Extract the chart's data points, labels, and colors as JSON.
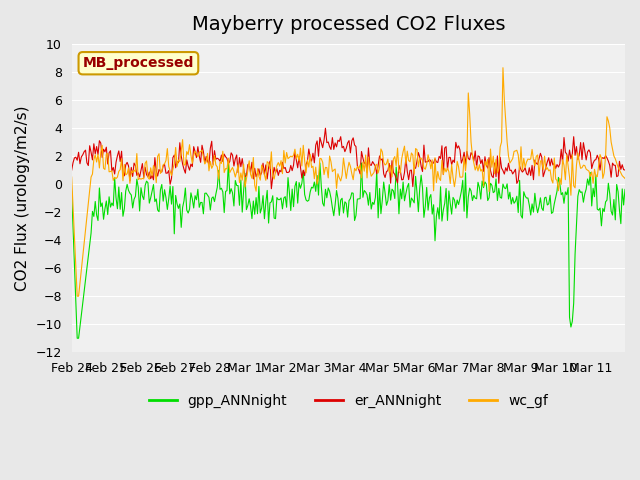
{
  "title": "Mayberry processed CO2 Fluxes",
  "ylabel": "CO2 Flux (urology/m2/s)",
  "ylim": [
    -12,
    10
  ],
  "yticks": [
    -12,
    -10,
    -8,
    -6,
    -4,
    -2,
    0,
    2,
    4,
    6,
    8,
    10
  ],
  "n_points": 400,
  "colors": {
    "gpp_ANNnight": "#00dd00",
    "er_ANNnight": "#dd0000",
    "wc_gf": "#ffaa00"
  },
  "legend_label": "MB_processed",
  "legend_box_color": "#ffffcc",
  "legend_box_edge": "#cc9900",
  "background_color": "#e8e8e8",
  "plot_bg_color": "#f0f0f0",
  "title_fontsize": 14,
  "axis_label_fontsize": 11,
  "tick_fontsize": 9,
  "legend_fontsize": 10
}
